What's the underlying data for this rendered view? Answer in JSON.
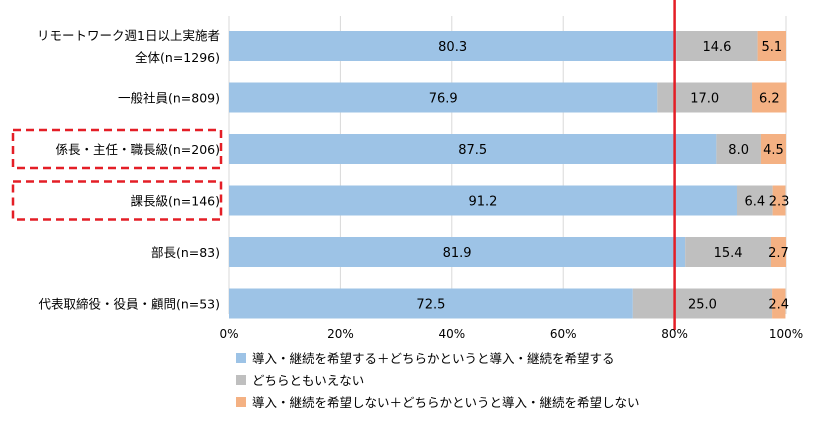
{
  "chart_data": {
    "type": "bar",
    "orientation": "horizontal",
    "stacked": true,
    "categories": [
      [
        "リモートワーク週1日以上実施者",
        "全体(n=1296)"
      ],
      [
        "一般社員(n=809)"
      ],
      [
        "係長・主任・職長級(n=206)"
      ],
      [
        "課長級(n=146)"
      ],
      [
        "部長(n=83)"
      ],
      [
        "代表取締役・役員・顧問(n=53)"
      ]
    ],
    "series": [
      {
        "name": "導入・継続を希望する＋どちらかというと導入・継続を希望する",
        "color": "#9dc3e6",
        "values": [
          80.3,
          76.9,
          87.5,
          91.2,
          81.9,
          72.5
        ],
        "labels": [
          "80.3",
          "76.9",
          "87.5",
          "91.2",
          "81.9",
          "72.5"
        ]
      },
      {
        "name": "どちらともいえない",
        "color": "#bfbfbf",
        "values": [
          14.6,
          17.0,
          8.0,
          6.4,
          15.4,
          25.0
        ],
        "labels": [
          "14.6",
          "17.0",
          "8.0",
          "6.4",
          "15.4",
          "25.0"
        ]
      },
      {
        "name": "導入・継続を希望しない＋どちらかというと導入・継続を希望しない",
        "color": "#f4b183",
        "values": [
          5.1,
          6.2,
          4.5,
          2.3,
          2.7,
          2.4
        ],
        "labels": [
          "5.1",
          "6.2",
          "4.5",
          "2.3",
          "2.7",
          "2.4"
        ]
      }
    ],
    "xlim": [
      0,
      100
    ],
    "x_ticks": [
      "0%",
      "20%",
      "40%",
      "60%",
      "80%",
      "100%"
    ],
    "grid": true,
    "reference_line": {
      "value": 80,
      "color": "#e41e26"
    },
    "highlighted_categories": [
      2,
      3
    ],
    "highlight_color": "#e41e26",
    "legend_position": "bottom"
  }
}
